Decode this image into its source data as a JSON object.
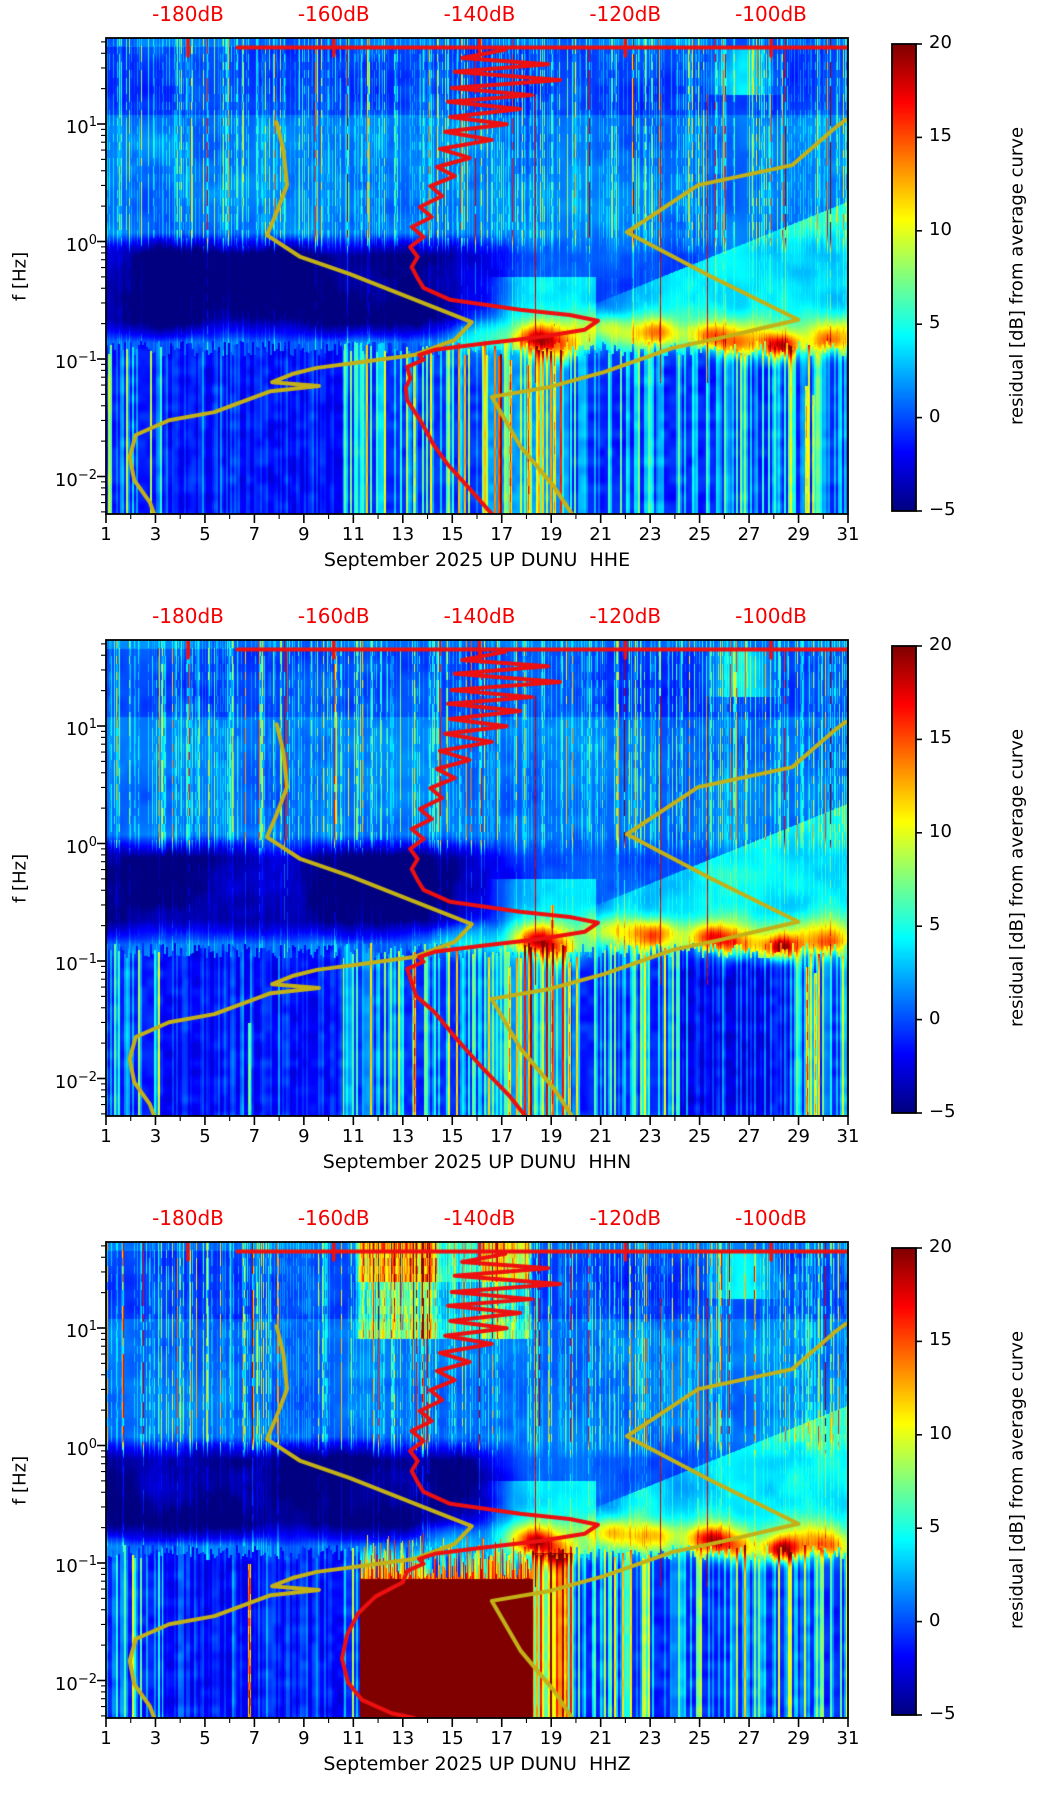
{
  "figure": {
    "background": "#ffffff"
  },
  "colors": {
    "average_psd_curve": "#ee1010",
    "noise_model_curve": "#c3b117",
    "top_axis_text": "#f40000",
    "frame": "#000000"
  },
  "axes": {
    "ylabel": "f [Hz]",
    "y_tick_base": "10",
    "y_ticks": [
      {
        "exp": "1"
      },
      {
        "exp": "0"
      },
      {
        "exp": "−1"
      },
      {
        "exp": "−2"
      }
    ],
    "x_tick_labels": [
      "1",
      "3",
      "5",
      "7",
      "9",
      "11",
      "13",
      "15",
      "17",
      "19",
      "21",
      "23",
      "25",
      "27",
      "29",
      "31"
    ],
    "top_axis_labels": [
      "-180dB",
      "-160dB",
      "-140dB",
      "-120dB",
      "-100dB"
    ]
  },
  "colorbar": {
    "label": "residual [dB] from average curve",
    "tick_labels": [
      "20",
      "15",
      "10",
      "5",
      "0",
      "−5"
    ],
    "tick_values": [
      20,
      15,
      10,
      5,
      0,
      -5
    ],
    "min": -5,
    "max": 20,
    "colormap": "jet"
  },
  "panels": [
    {
      "channel": "HHE",
      "xlabel": "September 2025 UP DUNU  HHE"
    },
    {
      "channel": "HHN",
      "xlabel": "September 2025 UP DUNU  HHN"
    },
    {
      "channel": "HHZ",
      "xlabel": "September 2025 UP DUNU  HHZ"
    }
  ],
  "chart_data": {
    "type": "heatmap",
    "subtype": "seismic-noise-residual-spectrogram",
    "station": "UP DUNU",
    "month": "September 2025",
    "channels": [
      "HHE",
      "HHN",
      "HHZ"
    ],
    "x_axis": {
      "unit": "day of month",
      "range": [
        1,
        31
      ],
      "major_ticks": [
        1,
        3,
        5,
        7,
        9,
        11,
        13,
        15,
        17,
        19,
        21,
        23,
        25,
        27,
        29,
        31
      ]
    },
    "y_axis": {
      "label": "f [Hz]",
      "scale": "log",
      "range_hz": [
        0.0048,
        54
      ],
      "decade_ticks": [
        10,
        1,
        0.1,
        0.01
      ]
    },
    "color_axis": {
      "label": "residual [dB] from average curve",
      "range_db": [
        -5,
        20
      ],
      "colormap": "jet"
    },
    "top_axis": {
      "unit": "dB (PSD)",
      "labels_db": [
        -180,
        -160,
        -140,
        -120,
        -100
      ],
      "approx_range_db": [
        -191,
        -89
      ],
      "color": "red"
    },
    "overlay_curves": {
      "note": "polylines in fractional plot coords fx(0=day1,1=day31), fy(0=54Hz,1=0.0048Hz)",
      "noise_model_low_yellow": [
        [
          0.23,
          0.177
        ],
        [
          0.239,
          0.235
        ],
        [
          0.244,
          0.309
        ],
        [
          0.23,
          0.366
        ],
        [
          0.217,
          0.414
        ],
        [
          0.262,
          0.46
        ],
        [
          0.329,
          0.496
        ],
        [
          0.41,
          0.546
        ],
        [
          0.493,
          0.597
        ],
        [
          0.47,
          0.634
        ],
        [
          0.415,
          0.666
        ],
        [
          0.342,
          0.681
        ],
        [
          0.284,
          0.693
        ],
        [
          0.251,
          0.706
        ],
        [
          0.224,
          0.723
        ],
        [
          0.287,
          0.731
        ],
        [
          0.222,
          0.742
        ],
        [
          0.146,
          0.786
        ],
        [
          0.085,
          0.803
        ],
        [
          0.04,
          0.834
        ],
        [
          0.032,
          0.88
        ],
        [
          0.038,
          0.929
        ],
        [
          0.059,
          0.975
        ],
        [
          0.065,
          1.0
        ]
      ],
      "noise_model_high_yellow": [
        [
          0.997,
          0.172
        ],
        [
          0.984,
          0.187
        ],
        [
          0.925,
          0.267
        ],
        [
          0.798,
          0.309
        ],
        [
          0.702,
          0.408
        ],
        [
          0.814,
          0.5
        ],
        [
          0.933,
          0.592
        ],
        [
          0.828,
          0.63
        ],
        [
          0.764,
          0.651
        ],
        [
          0.671,
          0.702
        ],
        [
          0.598,
          0.733
        ],
        [
          0.52,
          0.754
        ],
        [
          0.559,
          0.859
        ],
        [
          0.604,
          0.943
        ],
        [
          0.628,
          1.0
        ]
      ],
      "average_psd_top_line": [
        [
          0.177,
          0.02
        ],
        [
          1.0,
          0.02
        ]
      ],
      "average_psd_red_shared": [
        [
          0.538,
          0.025
        ],
        [
          0.48,
          0.042
        ],
        [
          0.596,
          0.055
        ],
        [
          0.47,
          0.071
        ],
        [
          0.612,
          0.088
        ],
        [
          0.466,
          0.105
        ],
        [
          0.574,
          0.12
        ],
        [
          0.461,
          0.134
        ],
        [
          0.558,
          0.149
        ],
        [
          0.464,
          0.166
        ],
        [
          0.54,
          0.181
        ],
        [
          0.457,
          0.197
        ],
        [
          0.52,
          0.214
        ],
        [
          0.45,
          0.233
        ],
        [
          0.49,
          0.252
        ],
        [
          0.446,
          0.271
        ],
        [
          0.47,
          0.29
        ],
        [
          0.437,
          0.311
        ],
        [
          0.453,
          0.332
        ],
        [
          0.423,
          0.355
        ],
        [
          0.439,
          0.376
        ],
        [
          0.412,
          0.397
        ],
        [
          0.428,
          0.418
        ],
        [
          0.41,
          0.439
        ],
        [
          0.42,
          0.46
        ],
        [
          0.412,
          0.481
        ],
        [
          0.419,
          0.502
        ],
        [
          0.428,
          0.525
        ],
        [
          0.464,
          0.55
        ],
        [
          0.558,
          0.571
        ],
        [
          0.625,
          0.582
        ],
        [
          0.663,
          0.594
        ],
        [
          0.645,
          0.613
        ],
        [
          0.585,
          0.628
        ],
        [
          0.504,
          0.643
        ],
        [
          0.443,
          0.655
        ],
        [
          0.422,
          0.666
        ],
        [
          0.428,
          0.676
        ],
        [
          0.406,
          0.691
        ]
      ],
      "average_psd_tails": {
        "HHE": [
          [
            0.41,
            0.715
          ],
          [
            0.404,
            0.735
          ],
          [
            0.406,
            0.761
          ],
          [
            0.425,
            0.807
          ],
          [
            0.441,
            0.853
          ],
          [
            0.46,
            0.895
          ],
          [
            0.489,
            0.945
          ],
          [
            0.52,
            1.0
          ]
        ],
        "HHN": [
          [
            0.412,
            0.72
          ],
          [
            0.418,
            0.748
          ],
          [
            0.443,
            0.782
          ],
          [
            0.468,
            0.83
          ],
          [
            0.505,
            0.895
          ],
          [
            0.545,
            0.96
          ],
          [
            0.565,
            1.0
          ]
        ],
        "HHZ": [
          [
            0.4,
            0.715
          ],
          [
            0.363,
            0.745
          ],
          [
            0.34,
            0.78
          ],
          [
            0.325,
            0.825
          ],
          [
            0.318,
            0.875
          ],
          [
            0.326,
            0.925
          ],
          [
            0.345,
            0.962
          ],
          [
            0.385,
            0.99
          ],
          [
            0.415,
            1.0
          ]
        ]
      },
      "top_axis_tick_fx": [
        0.1105,
        0.307,
        0.5034,
        0.6999,
        0.8963
      ]
    },
    "features": {
      "shared": {
        "dark_band_f_hz": [
          0.15,
          1.15
        ],
        "dark_band_days": [
          1,
          18
        ],
        "microseism_band_f_hz": [
          0.09,
          0.35
        ],
        "microseism_onset_day": 13,
        "hotspots_day_fHz_amp": [
          [
            18.4,
            0.15,
            9
          ],
          [
            19.3,
            0.12,
            7
          ],
          [
            21.3,
            0.19,
            5
          ],
          [
            23.3,
            0.17,
            5
          ],
          [
            25.4,
            0.16,
            8
          ],
          [
            26.5,
            0.13,
            6
          ],
          [
            28.3,
            0.13,
            13
          ],
          [
            30.2,
            0.14,
            6
          ]
        ],
        "bright_lowfreq_band_days": [
          16.3,
          19.7
        ],
        "cyan_fan_days": [
          20.5,
          31
        ],
        "top_right_cyan_patch": {
          "days": [
            25.3,
            28.3
          ],
          "f_hz": [
            18,
            45
          ]
        },
        "tall_red_lines_days": [
          18.35,
          23.4,
          25.3
        ]
      },
      "per_panel_low_red_streaks_day_fTop_amp": {
        "HHE": [
          [
            13.45,
            0.09,
            10
          ],
          [
            17.35,
            0.1,
            15
          ],
          [
            18.05,
            0.09,
            15
          ],
          [
            19.1,
            0.2,
            13
          ],
          [
            29.3,
            0.06,
            12
          ],
          [
            29.6,
            0.05,
            10
          ]
        ],
        "HHN": [
          [
            6.8,
            0.03,
            8
          ],
          [
            13.45,
            0.12,
            16
          ],
          [
            17.3,
            0.09,
            13
          ],
          [
            19.05,
            0.3,
            16
          ],
          [
            19.7,
            0.1,
            13
          ],
          [
            29.35,
            0.09,
            15
          ],
          [
            29.65,
            0.08,
            12
          ]
        ],
        "HHZ": [
          [
            6.8,
            0.1,
            17
          ],
          [
            19.6,
            0.15,
            9
          ]
        ]
      },
      "HHZ_extras": {
        "saturated_low_blob": {
          "days": [
            11.25,
            18.25
          ],
          "f_below_hz": 0.075,
          "value_db": 20
        },
        "saturated_top_band": {
          "days": [
            11.05,
            18.3
          ],
          "f_above_hz": 8
        },
        "dark_zone_HHN_bottom_right_days": [
          24.2,
          28.6
        ]
      }
    }
  }
}
